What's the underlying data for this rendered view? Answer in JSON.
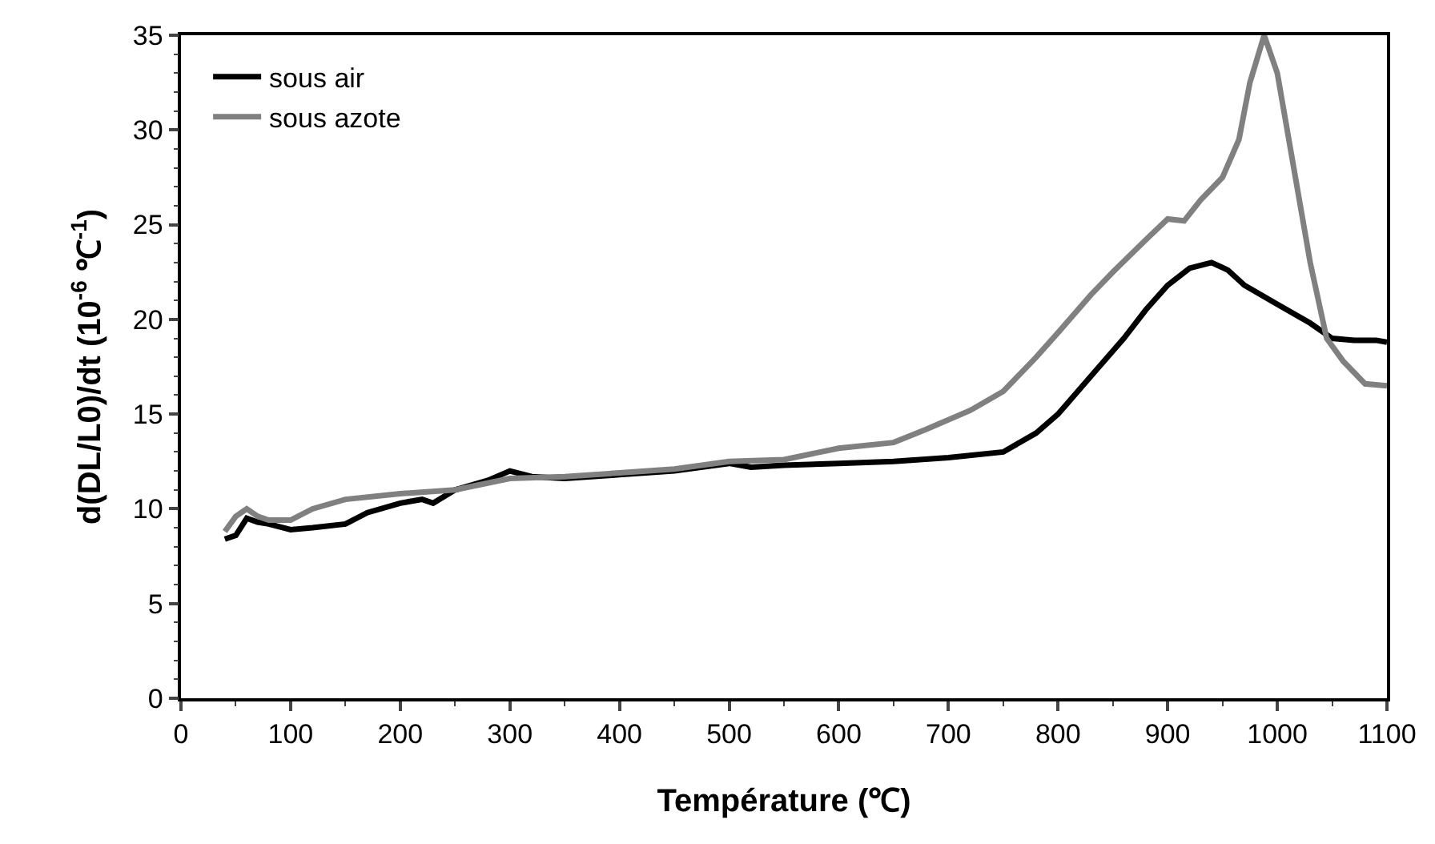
{
  "chart_data": {
    "type": "line",
    "xlabel": "Température (℃)",
    "ylabel": "d(DL/L0)/dt (10$^{-6}$ ℃$^{-1}$)",
    "xlim": [
      0,
      1100
    ],
    "xticks": [
      0,
      100,
      200,
      300,
      400,
      500,
      600,
      700,
      800,
      900,
      1000,
      1100
    ],
    "ylim": [
      0,
      35
    ],
    "yticks": [
      0,
      5,
      10,
      15,
      20,
      25,
      30,
      35
    ],
    "grid": false,
    "legend": "top left",
    "marker": "none",
    "line_style": "solid",
    "series": [
      {
        "name": "sous air",
        "color": "#000000",
        "x": [
          40,
          50,
          60,
          70,
          80,
          100,
          120,
          150,
          170,
          200,
          220,
          230,
          250,
          280,
          300,
          320,
          350,
          400,
          450,
          500,
          520,
          550,
          600,
          650,
          700,
          750,
          780,
          800,
          830,
          860,
          880,
          900,
          920,
          940,
          955,
          970,
          1000,
          1030,
          1050,
          1070,
          1090,
          1100
        ],
        "values": [
          8.4,
          8.6,
          9.5,
          9.3,
          9.2,
          8.9,
          9.0,
          9.2,
          9.8,
          10.3,
          10.5,
          10.3,
          11.0,
          11.5,
          12.0,
          11.7,
          11.6,
          11.8,
          12.0,
          12.4,
          12.2,
          12.3,
          12.4,
          12.5,
          12.7,
          13.0,
          14.0,
          15.0,
          17.0,
          19.0,
          20.5,
          21.8,
          22.7,
          23.0,
          22.6,
          21.8,
          20.8,
          19.8,
          19.0,
          18.9,
          18.9,
          18.8
        ]
      },
      {
        "name": "sous azote",
        "color": "#808080",
        "x": [
          40,
          50,
          60,
          70,
          80,
          100,
          120,
          150,
          200,
          250,
          300,
          350,
          400,
          450,
          500,
          550,
          600,
          650,
          680,
          720,
          750,
          780,
          800,
          830,
          850,
          880,
          900,
          915,
          930,
          950,
          965,
          975,
          988,
          1000,
          1015,
          1030,
          1045,
          1060,
          1080,
          1100
        ],
        "values": [
          8.8,
          9.6,
          10.0,
          9.6,
          9.4,
          9.4,
          10.0,
          10.5,
          10.8,
          11.0,
          11.6,
          11.7,
          11.9,
          12.1,
          12.5,
          12.6,
          13.2,
          13.5,
          14.2,
          15.2,
          16.2,
          18.0,
          19.3,
          21.3,
          22.5,
          24.2,
          25.3,
          25.2,
          26.3,
          27.5,
          29.5,
          32.5,
          35.0,
          33.0,
          28.0,
          23.0,
          19.0,
          17.8,
          16.6,
          16.5
        ]
      }
    ]
  }
}
